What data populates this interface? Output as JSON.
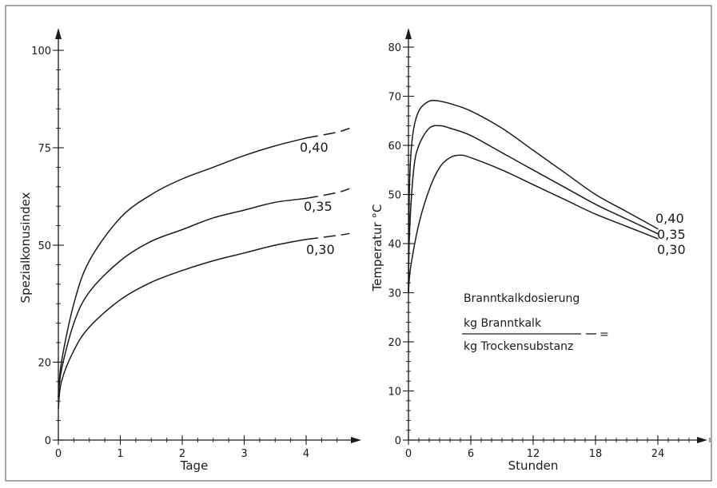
{
  "chart_data": [
    {
      "type": "line",
      "xlabel": "Tage",
      "ylabel": "Spezialkonusindex",
      "xlim": [
        0,
        4.7
      ],
      "ylim": [
        0,
        100
      ],
      "x_ticks": [
        0,
        1,
        2,
        3,
        4
      ],
      "x_tick_labels": [
        "0",
        "1",
        "2",
        "3",
        "4"
      ],
      "y_ticks": [
        0,
        20,
        50,
        75,
        100
      ],
      "y_tick_labels": [
        "0",
        "20",
        "50",
        "75",
        "100"
      ],
      "series": [
        {
          "name": "0,40",
          "dashed_from": 3.6,
          "x": [
            0,
            0.05,
            0.25,
            0.5,
            1.0,
            1.5,
            2.0,
            2.5,
            3.0,
            3.5,
            4.0,
            4.5,
            4.7
          ],
          "y": [
            11,
            20,
            35,
            46,
            57,
            63,
            67,
            70,
            73,
            75.5,
            77.5,
            79,
            80
          ]
        },
        {
          "name": "0,35",
          "dashed_from": 3.6,
          "x": [
            0,
            0.05,
            0.25,
            0.5,
            1.0,
            1.5,
            2.0,
            2.5,
            3.0,
            3.5,
            4.0,
            4.5,
            4.7
          ],
          "y": [
            11,
            18,
            30,
            38,
            46,
            51,
            54,
            57,
            59,
            61,
            62,
            63.5,
            64.5
          ]
        },
        {
          "name": "0,30",
          "dashed_from": 3.6,
          "x": [
            0,
            0.05,
            0.25,
            0.5,
            1.0,
            1.5,
            2.0,
            2.5,
            3.0,
            3.5,
            4.0,
            4.5,
            4.7
          ],
          "y": [
            8,
            15,
            23,
            29,
            36,
            40.5,
            43.5,
            46,
            48,
            50,
            51.5,
            52.5,
            53
          ]
        }
      ]
    },
    {
      "type": "line",
      "xlabel": "Stunden",
      "ylabel": "Temperatur °C",
      "xlim": [
        0,
        29
      ],
      "ylim": [
        0,
        80
      ],
      "x_ticks": [
        0,
        6,
        12,
        18,
        24
      ],
      "x_tick_labels": [
        "0",
        "6",
        "12",
        "18",
        "24"
      ],
      "y_ticks": [
        0,
        10,
        20,
        30,
        40,
        50,
        60,
        70,
        80
      ],
      "y_tick_labels": [
        "0",
        "10",
        "20",
        "30",
        "40",
        "50",
        "60",
        "70",
        "80"
      ],
      "series": [
        {
          "name": "0,40",
          "x": [
            0,
            0.1,
            0.4,
            1,
            2,
            3,
            4,
            6,
            9,
            12,
            15,
            18,
            21,
            24
          ],
          "y": [
            30,
            52,
            62,
            67,
            69,
            69,
            68.5,
            67,
            63.5,
            59,
            54.5,
            50,
            46.5,
            43
          ]
        },
        {
          "name": "0,35",
          "x": [
            0,
            0.1,
            0.5,
            1,
            2,
            3,
            4,
            6,
            9,
            12,
            15,
            18,
            21,
            24
          ],
          "y": [
            30,
            42,
            55,
            60,
            63.5,
            64,
            63.5,
            62,
            58.5,
            55,
            51.5,
            48,
            45,
            42
          ]
        },
        {
          "name": "0,30",
          "x": [
            0,
            0.2,
            1,
            2,
            3,
            4,
            5,
            6,
            9,
            12,
            15,
            18,
            21,
            24
          ],
          "y": [
            30,
            35,
            44,
            51,
            55.5,
            57.5,
            58,
            57.5,
            55,
            52,
            49,
            46,
            43.5,
            41
          ]
        }
      ],
      "annotation": {
        "title": "Branntkalkdosierung",
        "numerator": "kg  Branntkalk",
        "denominator": "kg  Trockensubstanz",
        "suffix": "="
      }
    }
  ]
}
